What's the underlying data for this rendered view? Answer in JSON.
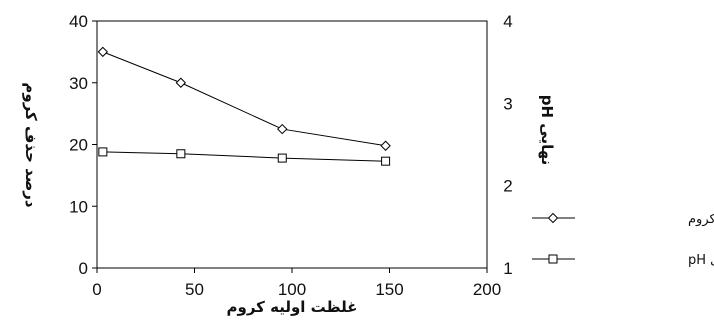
{
  "chart_data": {
    "type": "line",
    "xlabel": "غلظت اولیه کروم",
    "ylabel_left": "درصد حذف کروم",
    "ylabel_right": "pH نهایی",
    "xlim": [
      0,
      200
    ],
    "ylim_left": [
      0,
      40
    ],
    "ylim_right": [
      1,
      4
    ],
    "x_ticks": [
      "0",
      "50",
      "100",
      "150",
      "200"
    ],
    "y_left_ticks": [
      "0",
      "10",
      "20",
      "30",
      "40"
    ],
    "y_right_ticks": [
      "1",
      "2",
      "3",
      "4"
    ],
    "grid": false,
    "legend_position": "right",
    "series": [
      {
        "name": "درصد حذف کروم",
        "axis": "left",
        "marker": "diamond",
        "x": [
          3,
          43,
          95,
          148
        ],
        "y": [
          35,
          30,
          22.5,
          19.8
        ]
      },
      {
        "name": "نهایی pH",
        "axis": "left",
        "marker": "square",
        "x": [
          3,
          43,
          95,
          148
        ],
        "y": [
          18.8,
          18.5,
          17.8,
          17.3
        ]
      }
    ]
  }
}
